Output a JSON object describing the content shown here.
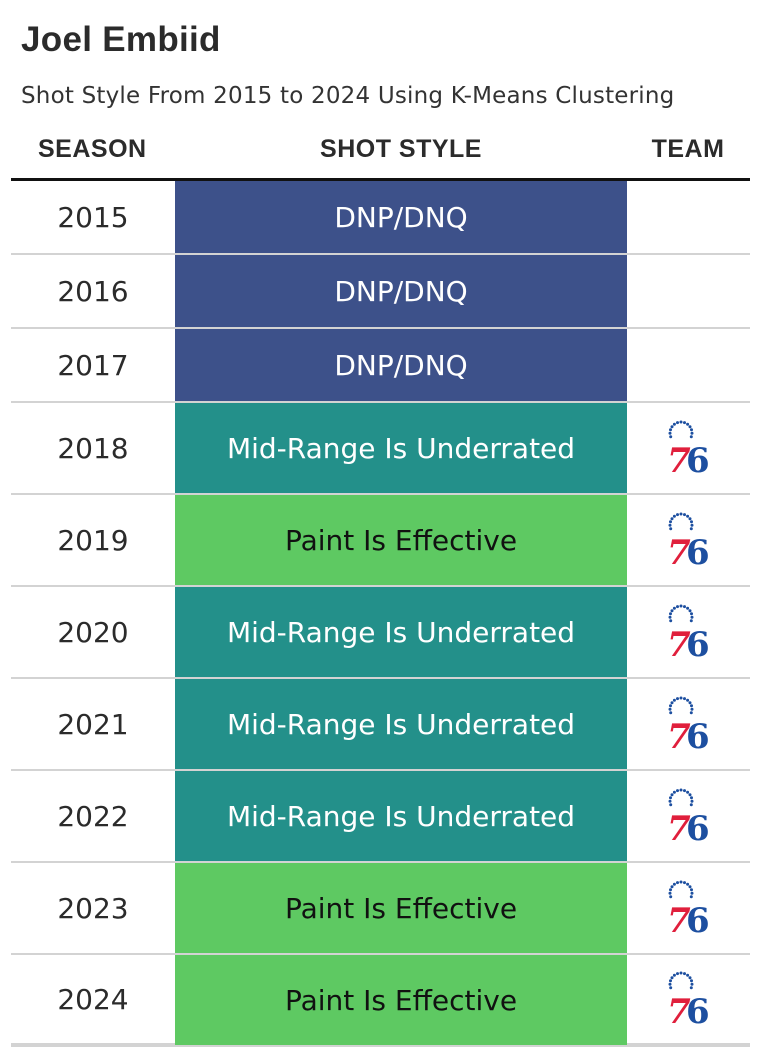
{
  "title": "Joel Embiid",
  "subtitle": "Shot Style From 2015 to 2024 Using K-Means Clustering",
  "headers": {
    "season": "SEASON",
    "shot_style": "SHOT STYLE",
    "team": "TEAM"
  },
  "colors": {
    "DNP/DNQ": "#3d518a",
    "Mid-Range Is Underrated": "#23908a",
    "Paint Is Effective": "#5ec962",
    "team_red": "#e01f3c",
    "team_blue": "#1d4fa0"
  },
  "chart_data": {
    "type": "table",
    "columns": [
      "SEASON",
      "SHOT STYLE",
      "TEAM"
    ],
    "rows": [
      {
        "season": "2015",
        "shot_style": "DNP/DNQ",
        "team_logo": ""
      },
      {
        "season": "2016",
        "shot_style": "DNP/DNQ",
        "team_logo": ""
      },
      {
        "season": "2017",
        "shot_style": "DNP/DNQ",
        "team_logo": ""
      },
      {
        "season": "2018",
        "shot_style": "Mid-Range Is Underrated",
        "team_logo": "76ers-logo-icon"
      },
      {
        "season": "2019",
        "shot_style": "Paint Is Effective",
        "team_logo": "76ers-logo-icon"
      },
      {
        "season": "2020",
        "shot_style": "Mid-Range Is Underrated",
        "team_logo": "76ers-logo-icon"
      },
      {
        "season": "2021",
        "shot_style": "Mid-Range Is Underrated",
        "team_logo": "76ers-logo-icon"
      },
      {
        "season": "2022",
        "shot_style": "Mid-Range Is Underrated",
        "team_logo": "76ers-logo-icon"
      },
      {
        "season": "2023",
        "shot_style": "Paint Is Effective",
        "team_logo": "76ers-logo-icon"
      },
      {
        "season": "2024",
        "shot_style": "Paint Is Effective",
        "team_logo": "76ers-logo-icon"
      }
    ]
  }
}
